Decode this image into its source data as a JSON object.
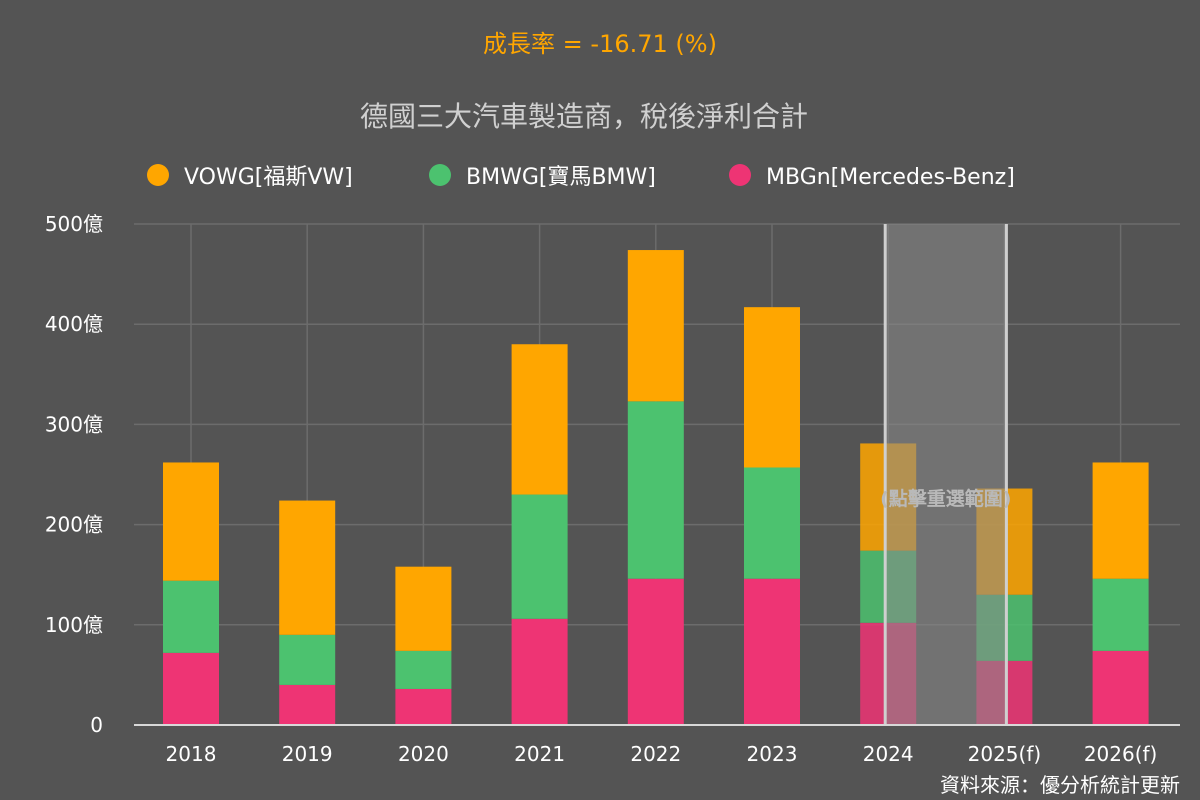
{
  "header": {
    "growth_text": "成長率 = -16.71 (%)",
    "title": "德國三大汽車製造商，稅後淨利合計"
  },
  "selection": {
    "label": "(點擊重選範圍)",
    "from_category": "2024",
    "to_category": "2025(f)"
  },
  "footer": {
    "source": "資料來源：優分析統計更新"
  },
  "colors": {
    "background": "#545454",
    "growth_text": "#ffa600",
    "title_text": "#d0d0d0",
    "axis_text": "#ffffff",
    "grid": "#6c6c6c",
    "selection_fill": "#8a8a8a",
    "selection_border": "#cfcfcf"
  },
  "chart_data": {
    "type": "bar",
    "stacked": true,
    "categories": [
      "2018",
      "2019",
      "2020",
      "2021",
      "2022",
      "2023",
      "2024",
      "2025(f)",
      "2026(f)"
    ],
    "series": [
      {
        "name": "MBGn[Mercedes-Benz]",
        "color": "#ee3474",
        "values": [
          72,
          40,
          36,
          106,
          146,
          146,
          102,
          64,
          74
        ]
      },
      {
        "name": "BMWG[寶馬BMW]",
        "color": "#4cc26f",
        "values": [
          72,
          50,
          38,
          124,
          177,
          111,
          72,
          66,
          72
        ]
      },
      {
        "name": "VOWG[福斯VW]",
        "color": "#ffa600",
        "values": [
          118,
          134,
          84,
          150,
          151,
          160,
          107,
          106,
          116
        ]
      }
    ],
    "legend_order": [
      "VOWG[福斯VW]",
      "BMWG[寶馬BMW]",
      "MBGn[Mercedes-Benz]"
    ],
    "legend_position": "top",
    "y_ticks": [
      0,
      100,
      200,
      300,
      400,
      500
    ],
    "y_tick_labels": [
      "0",
      "100億",
      "200億",
      "300億",
      "400億",
      "500億"
    ],
    "ylim": [
      0,
      500
    ],
    "grid": true
  }
}
